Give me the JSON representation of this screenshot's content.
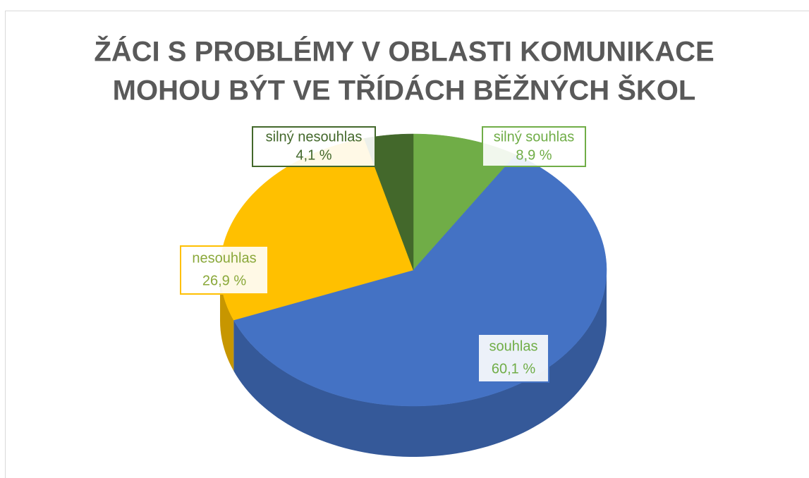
{
  "chart_data": {
    "type": "pie",
    "title": [
      "ŽÁCI S PROBLÉMY V OBLASTI KOMUNIKACE",
      "MOHOU BÝT VE TŘÍDÁCH BĚŽNÝCH ŠKOL"
    ],
    "categories": [
      "silný souhlas",
      "souhlas",
      "nesouhlas",
      "silný nesouhlas"
    ],
    "values": [
      8.9,
      60.1,
      26.9,
      4.1
    ],
    "value_labels": [
      "8,9 %",
      "60,1 %",
      "26,9 %",
      "4,1 %"
    ],
    "colors": [
      "#70ad47",
      "#4472c4",
      "#ffc000",
      "#43682b"
    ],
    "label_text_colors": [
      "#70ad47",
      "#70ad47",
      "#8aa83a",
      "#43682b"
    ]
  }
}
